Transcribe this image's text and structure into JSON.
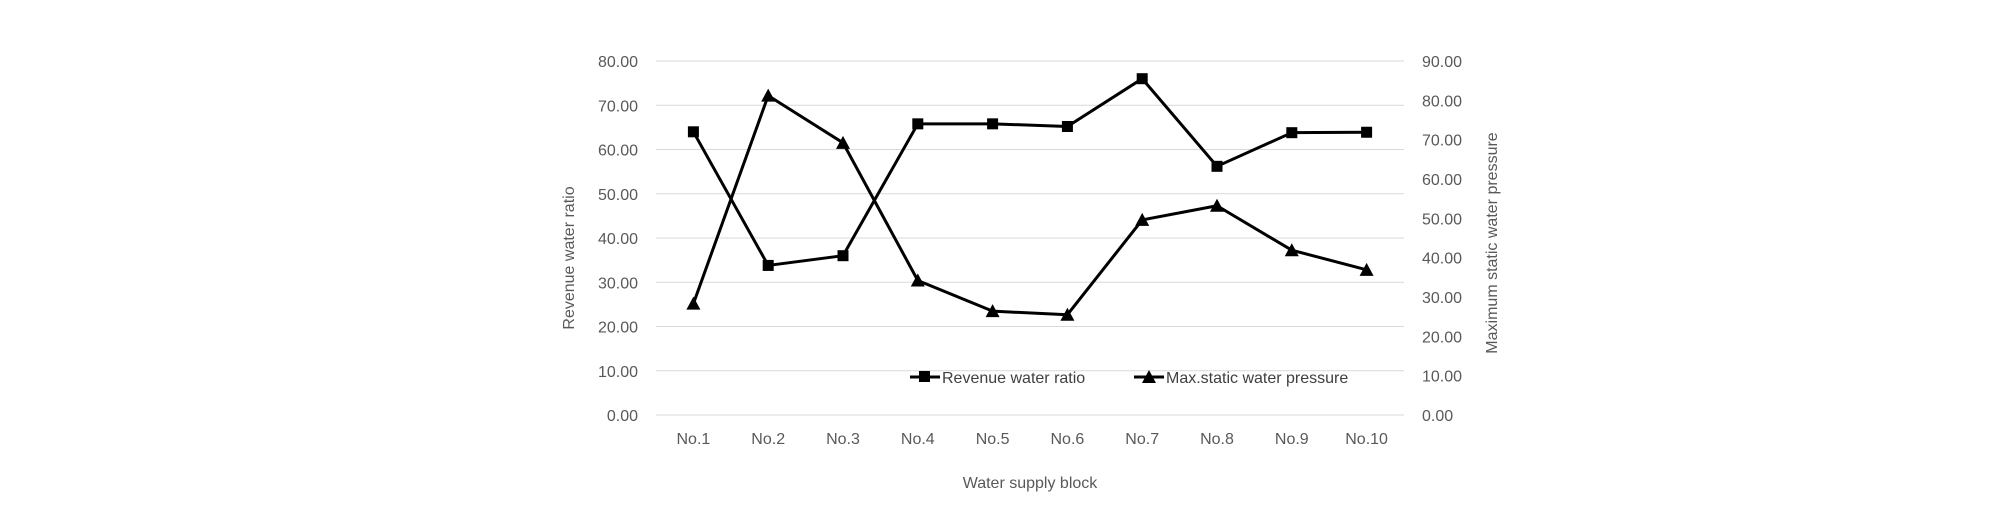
{
  "chart_data": {
    "type": "line",
    "categories": [
      "No.1",
      "No.2",
      "No.3",
      "No.4",
      "No.5",
      "No.6",
      "No.7",
      "No.8",
      "No.9",
      "No.10"
    ],
    "xlabel": "Water supply block",
    "ylabel": "Revenue water ratio",
    "y2label": "Maximum static water pressure",
    "ylim": [
      0,
      80
    ],
    "y2lim": [
      0,
      90
    ],
    "yticks": [
      "0.00",
      "10.00",
      "20.00",
      "30.00",
      "40.00",
      "50.00",
      "60.00",
      "70.00",
      "80.00"
    ],
    "y2ticks": [
      "0.00",
      "10.00",
      "20.00",
      "30.00",
      "40.00",
      "50.00",
      "60.00",
      "70.00",
      "80.00",
      "90.00"
    ],
    "grid": true,
    "legend_position": "bottom-right",
    "series": [
      {
        "name": "Revenue water ratio",
        "axis": "left",
        "marker": "square",
        "color": "#000000",
        "values": [
          64.0,
          33.8,
          36.0,
          65.8,
          65.8,
          65.2,
          76.0,
          56.2,
          63.8,
          63.9
        ]
      },
      {
        "name": "Max.static water pressure",
        "axis": "right",
        "marker": "triangle",
        "color": "#000000",
        "values": [
          28.3,
          81.2,
          69.2,
          34.2,
          26.4,
          25.5,
          49.6,
          53.2,
          41.9,
          36.9
        ]
      }
    ],
    "colors": {
      "line": "#000000",
      "grid": "#d9d9d9",
      "text": "#595959"
    }
  }
}
